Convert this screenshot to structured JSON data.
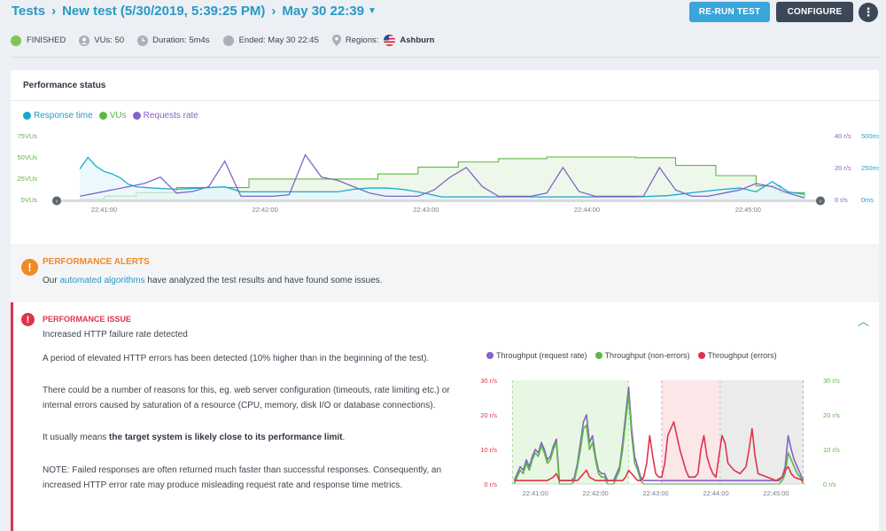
{
  "breadcrumb": {
    "root": "Tests",
    "test": "New test (5/30/2019, 5:39:25 PM)",
    "run": "May 30 22:39"
  },
  "buttons": {
    "rerun": "RE-RUN TEST",
    "configure": "CONFIGURE",
    "more": "⋮"
  },
  "status": {
    "state": "FINISHED",
    "vus": "VUs: 50",
    "duration": "Duration: 5m4s",
    "ended": "Ended: May 30 22:45",
    "regions_label": "Regions:",
    "region": "Ashburn"
  },
  "colors": {
    "accent": "#2799c6",
    "response": "#16a9d1",
    "vus": "#5cb744",
    "requests": "#8463c9",
    "errors": "#e0334c",
    "warning": "#f08a24"
  },
  "perf": {
    "title": "Performance status",
    "legend": [
      "Response time",
      "VUs",
      "Requests rate"
    ]
  },
  "chart_data": [
    {
      "type": "line",
      "name": "performance-status",
      "title": "",
      "legend_position": "top-left",
      "x_ticks": [
        "22:41:00",
        "22:42:00",
        "22:43:00",
        "22:44:00",
        "22:45:00"
      ],
      "x_tick_minutes": [
        1,
        2,
        3,
        4,
        5
      ],
      "x_range_minutes": [
        0.75,
        5.4
      ],
      "left_axis": {
        "ticks": [
          "0VUs",
          "25VUs",
          "50VUs",
          "75VUs"
        ],
        "range": [
          0,
          75
        ]
      },
      "right_axis_rate": {
        "ticks": [
          "0 r/s",
          "20 r/s",
          "40 r/s"
        ],
        "range": [
          0,
          40
        ]
      },
      "right_axis_time": {
        "ticks": [
          "0ms",
          "250ms",
          "500ms"
        ],
        "range": [
          0,
          500
        ]
      },
      "grid": false,
      "series": [
        {
          "name": "VUs",
          "axis": "left",
          "x": [
            0.85,
            1.0,
            1.2,
            1.45,
            1.9,
            2.2,
            2.45,
            2.7,
            2.95,
            3.2,
            3.45,
            3.75,
            4.1,
            4.3,
            4.55,
            4.8,
            5.05,
            5.2,
            5.35
          ],
          "y": [
            0,
            4,
            8,
            14,
            24,
            24,
            24,
            30,
            38,
            44,
            48,
            50,
            50,
            49,
            40,
            28,
            16,
            8,
            2
          ]
        },
        {
          "name": "Requests rate",
          "axis": "right_rate",
          "x": [
            0.85,
            0.95,
            1.05,
            1.15,
            1.25,
            1.35,
            1.45,
            1.55,
            1.65,
            1.75,
            1.85,
            1.95,
            2.05,
            2.15,
            2.25,
            2.35,
            2.45,
            2.55,
            2.65,
            2.75,
            2.85,
            2.95,
            3.05,
            3.15,
            3.25,
            3.35,
            3.45,
            3.55,
            3.65,
            3.75,
            3.85,
            3.95,
            4.05,
            4.15,
            4.25,
            4.35,
            4.45,
            4.55,
            4.65,
            4.75,
            4.85,
            4.95,
            5.05,
            5.15,
            5.25,
            5.35
          ],
          "y": [
            2,
            4,
            6,
            8,
            10,
            14,
            4,
            5,
            8,
            24,
            2,
            2,
            2,
            3,
            28,
            14,
            12,
            8,
            4,
            2,
            2,
            2,
            6,
            14,
            20,
            8,
            2,
            2,
            2,
            4,
            20,
            5,
            2,
            2,
            2,
            2,
            20,
            6,
            2,
            2,
            4,
            6,
            10,
            8,
            4,
            1
          ]
        },
        {
          "name": "Response time",
          "axis": "right_time",
          "x": [
            0.85,
            0.9,
            0.95,
            1.0,
            1.05,
            1.1,
            1.15,
            1.2,
            1.3,
            1.45,
            1.6,
            1.75,
            1.85,
            1.95,
            2.1,
            2.25,
            2.35,
            2.45,
            2.55,
            2.65,
            2.75,
            2.85,
            2.95,
            3.1,
            3.3,
            3.5,
            3.7,
            3.9,
            4.1,
            4.3,
            4.5,
            4.7,
            4.85,
            4.95,
            5.05,
            5.15,
            5.25,
            5.35
          ],
          "y": [
            240,
            330,
            260,
            220,
            200,
            170,
            120,
            100,
            90,
            80,
            90,
            100,
            60,
            60,
            60,
            60,
            60,
            60,
            80,
            90,
            90,
            80,
            60,
            20,
            20,
            20,
            20,
            20,
            20,
            20,
            30,
            60,
            80,
            90,
            60,
            140,
            60,
            40
          ]
        }
      ]
    },
    {
      "type": "line",
      "name": "throughput",
      "title": "",
      "legend_position": "top",
      "legend": [
        "Throughput (request rate)",
        "Throughput (non-errors)",
        "Throughput (errors)"
      ],
      "x_ticks": [
        "22:41:00",
        "22:42:00",
        "22:43:00",
        "22:44:00",
        "22:45:00"
      ],
      "x_tick_minutes": [
        1,
        2,
        3,
        4,
        5
      ],
      "x_range_minutes": [
        0.6,
        5.5
      ],
      "left_axis": {
        "ticks": [
          "0 r/s",
          "10 r/s",
          "20 r/s",
          "30 r/s"
        ],
        "range": [
          0,
          30
        ],
        "color": "#e0334c"
      },
      "right_axis": {
        "ticks": [
          "0 r/s",
          "10 r/s",
          "20 r/s",
          "30 r/s"
        ],
        "range": [
          0,
          30
        ],
        "color": "#5cb744"
      },
      "grid": false,
      "bands": [
        {
          "from": 0.62,
          "to": 2.55,
          "color": "#e8f7e3"
        },
        {
          "from": 2.55,
          "to": 3.1,
          "color": "#ffffff"
        },
        {
          "from": 3.1,
          "to": 4.07,
          "color": "#fbe6e8"
        },
        {
          "from": 4.07,
          "to": 5.45,
          "color": "#ebebeb"
        }
      ],
      "series": [
        {
          "name": "Throughput (request rate)",
          "x": [
            0.65,
            0.7,
            0.75,
            0.8,
            0.85,
            0.9,
            0.95,
            1.0,
            1.05,
            1.1,
            1.15,
            1.2,
            1.25,
            1.3,
            1.35,
            1.4,
            1.45,
            1.5,
            1.55,
            1.6,
            1.65,
            1.7,
            1.75,
            1.8,
            1.85,
            1.9,
            1.95,
            2.0,
            2.05,
            2.1,
            2.15,
            2.2,
            2.25,
            2.3,
            2.35,
            2.4,
            2.45,
            2.5,
            2.55,
            2.6,
            2.65,
            2.7,
            2.75,
            2.8,
            2.85,
            2.9,
            2.95,
            3.0,
            3.5,
            4.0,
            4.5,
            4.7,
            4.75,
            4.8,
            4.85,
            4.9,
            4.95,
            5.0,
            5.05,
            5.1,
            5.15,
            5.2,
            5.25,
            5.3,
            5.35,
            5.4,
            5.45
          ],
          "y": [
            1,
            3,
            5,
            4,
            7,
            5,
            8,
            10,
            9,
            12,
            10,
            7,
            8,
            11,
            13,
            1,
            1,
            1,
            1,
            1,
            2,
            6,
            12,
            18,
            20,
            12,
            14,
            8,
            4,
            3,
            3,
            1,
            1,
            1,
            3,
            5,
            12,
            20,
            28,
            16,
            8,
            5,
            2,
            1,
            1,
            1,
            1,
            1,
            1,
            1,
            1,
            1,
            1,
            1,
            1,
            1,
            1,
            1,
            1,
            2,
            5,
            14,
            10,
            7,
            5,
            3,
            1
          ]
        },
        {
          "name": "Throughput (non-errors)",
          "x": [
            0.65,
            0.7,
            0.75,
            0.8,
            0.85,
            0.9,
            0.95,
            1.0,
            1.05,
            1.1,
            1.15,
            1.2,
            1.25,
            1.3,
            1.35,
            1.4,
            1.45,
            1.5,
            1.55,
            1.6,
            1.65,
            1.7,
            1.75,
            1.8,
            1.85,
            1.9,
            1.95,
            2.0,
            2.05,
            2.1,
            2.15,
            2.2,
            2.25,
            2.3,
            2.35,
            2.4,
            2.45,
            2.5,
            2.55,
            2.6,
            2.65,
            2.7,
            2.75,
            2.8,
            2.85,
            2.9,
            2.95,
            3.0,
            3.5,
            4.0,
            4.5,
            4.7,
            4.75,
            4.8,
            4.85,
            4.9,
            4.95,
            5.0,
            5.05,
            5.1,
            5.15,
            5.2,
            5.25,
            5.3,
            5.35,
            5.4,
            5.45
          ],
          "y": [
            0,
            2,
            4,
            3,
            6,
            4,
            7,
            9,
            8,
            11,
            9,
            6,
            7,
            10,
            12,
            0,
            0,
            0,
            0,
            0,
            1,
            5,
            10,
            16,
            17,
            10,
            12,
            7,
            3,
            2,
            2,
            0,
            0,
            0,
            2,
            4,
            10,
            18,
            26,
            14,
            6,
            4,
            1,
            0,
            0,
            0,
            0,
            0,
            0,
            0,
            0,
            0,
            0,
            0,
            0,
            0,
            0,
            0,
            0,
            1,
            3,
            9,
            7,
            5,
            3,
            2,
            0
          ]
        },
        {
          "name": "Throughput (errors)",
          "x": [
            0.65,
            1.2,
            1.3,
            1.35,
            1.4,
            1.7,
            1.75,
            1.8,
            1.85,
            1.9,
            2.0,
            2.45,
            2.5,
            2.55,
            2.6,
            2.65,
            2.7,
            2.75,
            2.8,
            2.85,
            2.9,
            2.95,
            3.0,
            3.05,
            3.1,
            3.15,
            3.2,
            3.3,
            3.4,
            3.5,
            3.55,
            3.6,
            3.65,
            3.7,
            3.75,
            3.8,
            3.85,
            3.9,
            3.95,
            4.0,
            4.05,
            4.1,
            4.15,
            4.2,
            4.3,
            4.4,
            4.5,
            4.55,
            4.6,
            4.65,
            4.7,
            5.0,
            5.1,
            5.15,
            5.2,
            5.25,
            5.3,
            5.45
          ],
          "y": [
            1,
            1,
            2,
            3,
            1,
            1,
            2,
            3,
            4,
            2,
            1,
            1,
            2,
            4,
            3,
            2,
            1,
            1,
            2,
            6,
            14,
            8,
            3,
            2,
            2,
            6,
            14,
            18,
            10,
            4,
            2,
            2,
            2,
            3,
            10,
            14,
            8,
            5,
            3,
            2,
            8,
            14,
            12,
            6,
            4,
            3,
            5,
            10,
            16,
            8,
            3,
            1,
            2,
            4,
            5,
            3,
            2,
            1
          ]
        }
      ]
    }
  ],
  "alerts": {
    "title": "PERFORMANCE ALERTS",
    "text_before": "Our",
    "link": "automated algorithms",
    "text_after": "have analyzed the test results and have found some issues."
  },
  "issue": {
    "title": "PERFORMANCE ISSUE",
    "subtitle": "Increased HTTP failure rate detected",
    "p1": "A period of elevated HTTP errors has been detected (10% higher than in the beginning of the test).",
    "p2": "There could be a number of reasons for this, eg. web server configuration (timeouts, rate limiting etc.) or internal errors caused by saturation of a resource (CPU, memory, disk I/O or database connections).",
    "p3_before": "It usually means",
    "p3_bold": "the target system is likely close to its performance limit",
    "p3_after": ".",
    "p4": "NOTE: Failed responses are often returned much faster than successful responses. Consequently, an increased HTTP error rate may produce misleading request rate and response time metrics."
  }
}
